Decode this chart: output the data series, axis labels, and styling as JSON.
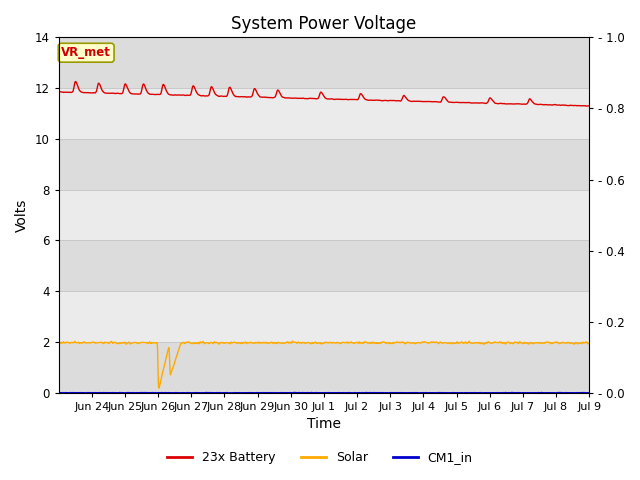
{
  "title": "System Power Voltage",
  "xlabel": "Time",
  "ylabel": "Volts",
  "ylim_left": [
    0,
    14
  ],
  "ylim_right": [
    0.0,
    1.0
  ],
  "yticks_left": [
    0,
    2,
    4,
    6,
    8,
    10,
    12,
    14
  ],
  "yticks_right": [
    0.0,
    0.2,
    0.4,
    0.6,
    0.8,
    1.0
  ],
  "xtick_labels": [
    "Jun 24",
    "Jun 25",
    "Jun 26",
    "Jun 27",
    "Jun 28",
    "Jun 29",
    "Jun 30",
    "Jul 1",
    "Jul 2",
    "Jul 3",
    "Jul 4",
    "Jul 5",
    "Jul 6",
    "Jul 7",
    "Jul 8",
    "Jul 9"
  ],
  "annotation_text": "VR_met",
  "annotation_color": "#cc0000",
  "annotation_bg": "#ffffcc",
  "annotation_border": "#999900",
  "bg_color_dark": "#dcdcdc",
  "bg_color_light": "#ebebeb",
  "grid_color": "#c8c8c8",
  "battery_color": "#dd0000",
  "solar_color": "#ffaa00",
  "cm1_color": "#0000cc",
  "legend_labels": [
    "23x Battery",
    "Solar",
    "CM1_in"
  ],
  "title_fontsize": 12,
  "axis_label_fontsize": 10,
  "tick_fontsize": 8.5
}
